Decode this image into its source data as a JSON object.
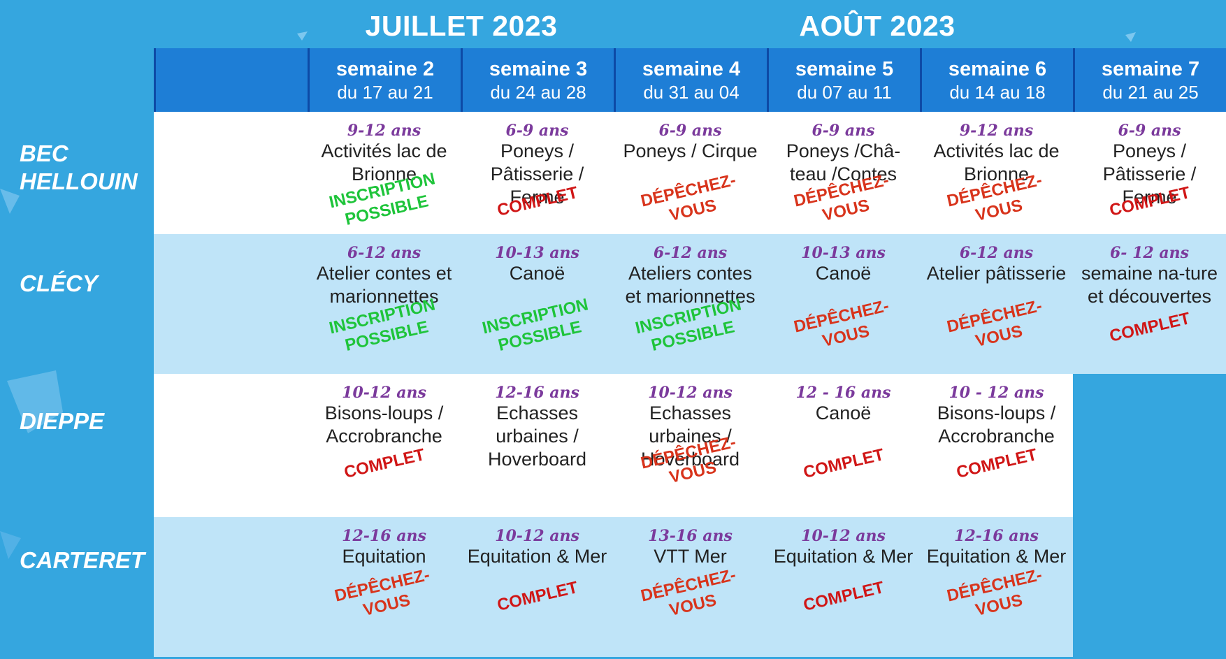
{
  "months": [
    {
      "label": "JUILLET 2023"
    },
    {
      "label": "AOÛT 2023"
    }
  ],
  "weeks": [
    {
      "name": "semaine 2",
      "dates": "du 17 au 21"
    },
    {
      "name": "semaine 3",
      "dates": "du 24 au 28"
    },
    {
      "name": "semaine 4",
      "dates": "du 31 au 04"
    },
    {
      "name": "semaine 5",
      "dates": "du 07 au 11"
    },
    {
      "name": "semaine 6",
      "dates": "du 14 au 18"
    },
    {
      "name": "semaine 7",
      "dates": "du 21 au 25"
    }
  ],
  "cities": [
    {
      "name": "BEC HELLOUIN"
    },
    {
      "name": "CLÉCY"
    },
    {
      "name": "DIEPPE"
    },
    {
      "name": "CARTERET"
    }
  ],
  "rows": [
    {
      "cells": [
        {
          "age": "9-12 ans",
          "activity": "Activités lac de Brionne",
          "status": "INSCRIPTION POSSIBLE"
        },
        {
          "age": "6-9 ans",
          "activity": "Poneys / Pâtisserie / Ferme",
          "status": "COMPLET"
        },
        {
          "age": "6-9 ans",
          "activity": "Poneys / Cirque",
          "status": "DÉPÊCHEZ-VOUS"
        },
        {
          "age": "6-9 ans",
          "activity": "Poneys /Châ-teau /Contes",
          "status": "DÉPÊCHEZ-VOUS"
        },
        {
          "age": "9-12 ans",
          "activity": "Activités lac de Brionne",
          "status": "DÉPÊCHEZ-VOUS"
        },
        {
          "age": "6-9 ans",
          "activity": "Poneys / Pâtisserie / Ferme",
          "status": "COMPLET"
        }
      ]
    },
    {
      "cells": [
        {
          "age": "6-12 ans",
          "activity": "Atelier contes et marionnettes",
          "status": "INSCRIPTION POSSIBLE"
        },
        {
          "age": "10-13 ans",
          "activity": "Canoë",
          "status": "INSCRIPTION POSSIBLE"
        },
        {
          "age": "6-12 ans",
          "activity": "Ateliers contes et marionnettes",
          "status": "INSCRIPTION POSSIBLE"
        },
        {
          "age": "10-13 ans",
          "activity": "Canoë",
          "status": "DÉPÊCHEZ-VOUS"
        },
        {
          "age": "6-12 ans",
          "activity": "Atelier pâtisserie",
          "status": "DÉPÊCHEZ-VOUS"
        },
        {
          "age": "6- 12 ans",
          "activity": "semaine na-ture et découvertes",
          "status": "COMPLET"
        }
      ]
    },
    {
      "cells": [
        {
          "age": "10-12 ans",
          "activity": "Bisons-loups / Accrobranche",
          "status": "COMPLET"
        },
        {
          "age": "12-16 ans",
          "activity": "Echasses urbaines / Hoverboard",
          "status": ""
        },
        {
          "age": "10-12 ans",
          "activity": "Echasses urbaines / Hoverboard",
          "status": "DÉPÊCHEZ-VOUS"
        },
        {
          "age": "12 - 16 ans",
          "activity": "Canoë",
          "status": "COMPLET"
        },
        {
          "age": "10 - 12 ans",
          "activity": "Bisons-loups / Accrobranche",
          "status": "COMPLET"
        },
        null
      ]
    },
    {
      "cells": [
        {
          "age": "12-16 ans",
          "activity": "Equitation",
          "status": "DÉPÊCHEZ-VOUS"
        },
        {
          "age": "10-12 ans",
          "activity": "Equitation & Mer",
          "status": "COMPLET"
        },
        {
          "age": "13-16 ans",
          "activity": "VTT Mer",
          "status": "DÉPÊCHEZ-VOUS"
        },
        {
          "age": "10-12 ans",
          "activity": "Equitation & Mer",
          "status": "COMPLET"
        },
        {
          "age": "12-16 ans",
          "activity": "Equitation & Mer",
          "status": "DÉPÊCHEZ-VOUS"
        },
        null
      ]
    }
  ],
  "colors": {
    "background": "#35a6df",
    "header": "#1e7ed6",
    "age": "#7b3a9c",
    "complet": "#d01616",
    "depechez": "#d8341c",
    "inscription": "#1ec43a"
  }
}
